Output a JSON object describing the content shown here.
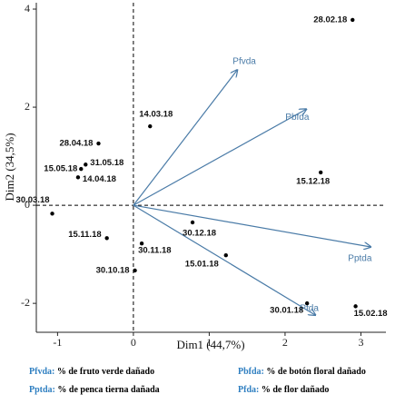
{
  "chart_data": {
    "type": "biplot",
    "x_label": "Dim1 (44,7%)",
    "y_label": "Dim2 (34,5%)",
    "xlim": [
      -1.28,
      3.33
    ],
    "ylim": [
      -2.59,
      4.13
    ],
    "xticks": [
      -1,
      0,
      1,
      2,
      3
    ],
    "yticks": [
      -2,
      0,
      2,
      4
    ],
    "point_color": "#000000",
    "vector_color": "#4a7ba7",
    "points": {
      "labels": [
        "28.02.18",
        "14.03.18",
        "28.04.18",
        "31.05.18",
        "15.05.18",
        "14.04.18",
        "15.12.18",
        "30.03.18",
        "15.11.18",
        "30.12.18",
        "30.11.18",
        "15.01.18",
        "30.10.18",
        "30.01.18",
        "15.02.18"
      ],
      "x": [
        2.89,
        0.22,
        -0.46,
        -0.63,
        -0.69,
        -0.73,
        2.47,
        -1.07,
        -0.35,
        0.78,
        0.11,
        1.22,
        0.02,
        2.29,
        2.93
      ],
      "y": [
        3.78,
        1.61,
        1.26,
        0.83,
        0.74,
        0.57,
        0.67,
        -0.17,
        -0.67,
        -0.35,
        -0.78,
        -1.02,
        -1.33,
        -2.0,
        -2.06
      ]
    },
    "vectors": {
      "labels": [
        "Pfvda",
        "Pbfda",
        "Pptda",
        "Pfda"
      ],
      "x": [
        1.37,
        2.28,
        3.13,
        2.4
      ],
      "y": [
        2.76,
        1.96,
        -0.85,
        -2.24
      ]
    },
    "footnotes": [
      {
        "abbr": "Pfvda:",
        "text": " % de fruto verde dañado"
      },
      {
        "abbr": "Pbfda:",
        "text": " % de botón floral dañado"
      },
      {
        "abbr": "Pptda:",
        "text": " % de penca tierna dañada"
      },
      {
        "abbr": "Pfda:",
        "text": " % de flor dañado"
      }
    ]
  }
}
